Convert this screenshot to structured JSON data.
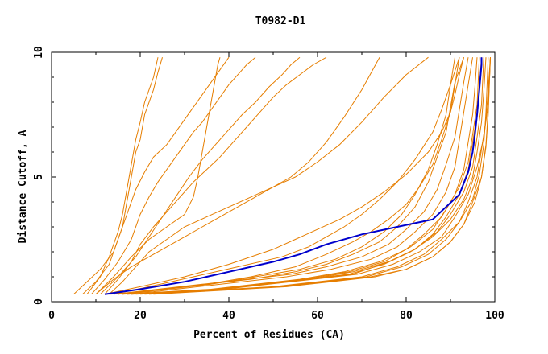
{
  "chart_data": {
    "type": "line",
    "title": "T0982-D1",
    "xlabel": "Percent of Residues (CA)",
    "ylabel": "Distance Cutoff, A",
    "xlim": [
      0,
      100
    ],
    "ylim": [
      0,
      10
    ],
    "x_ticks": [
      "0",
      "20",
      "40",
      "60",
      "80",
      "100"
    ],
    "y_ticks": [
      "0",
      "5",
      "10"
    ],
    "grid": false,
    "legend": "none",
    "colors": {
      "axis": "#000000",
      "orange": "#e67e00",
      "highlight": "#0000cc"
    },
    "highlight_series": {
      "x": [
        12,
        20,
        30,
        40,
        50,
        56,
        62,
        70,
        78,
        86,
        89,
        92,
        94,
        95,
        95.5,
        96,
        96.5,
        97,
        97
      ],
      "y": [
        0.3,
        0.5,
        0.8,
        1.2,
        1.6,
        1.9,
        2.3,
        2.7,
        3.0,
        3.3,
        3.8,
        4.3,
        5.2,
        6.0,
        6.7,
        7.5,
        8.5,
        9.5,
        9.8
      ]
    },
    "series": [
      {
        "x": [
          5,
          8,
          11,
          14,
          16,
          17,
          18,
          19,
          20,
          21,
          23,
          24,
          25
        ],
        "y": [
          0.3,
          0.8,
          1.3,
          2.0,
          3.0,
          4.0,
          5.0,
          6.0,
          6.5,
          7.5,
          8.5,
          9.2,
          9.8
        ]
      },
      {
        "x": [
          7,
          10,
          13,
          15,
          17,
          19,
          21,
          23,
          26,
          28,
          30,
          32,
          34,
          36,
          38,
          40
        ],
        "y": [
          0.3,
          0.8,
          1.5,
          2.5,
          3.5,
          4.5,
          5.2,
          5.8,
          6.3,
          6.8,
          7.3,
          7.8,
          8.3,
          8.8,
          9.3,
          9.8
        ]
      },
      {
        "x": [
          9,
          12,
          15,
          18,
          20,
          22,
          24,
          26,
          28,
          30,
          32,
          34,
          36,
          38,
          40,
          42,
          44,
          46
        ],
        "y": [
          0.3,
          0.9,
          1.6,
          2.5,
          3.5,
          4.2,
          4.8,
          5.3,
          5.8,
          6.3,
          6.8,
          7.2,
          7.7,
          8.2,
          8.7,
          9.1,
          9.5,
          9.8
        ]
      },
      {
        "x": [
          10,
          14,
          18,
          22,
          26,
          30,
          32,
          33,
          34,
          35,
          36,
          37,
          37.5,
          38
        ],
        "y": [
          0.3,
          1.0,
          1.8,
          2.5,
          3.0,
          3.5,
          4.2,
          5.0,
          6.0,
          7.0,
          8.0,
          9.0,
          9.5,
          9.8
        ]
      },
      {
        "x": [
          13,
          16,
          19,
          22,
          26,
          30,
          35,
          40,
          45,
          50,
          55,
          60,
          65,
          70,
          75,
          80,
          85
        ],
        "y": [
          0.3,
          0.8,
          1.4,
          2.0,
          2.5,
          3.0,
          3.4,
          3.8,
          4.2,
          4.6,
          5.0,
          5.6,
          6.3,
          7.2,
          8.2,
          9.1,
          9.8
        ]
      },
      {
        "x": [
          10,
          14,
          18,
          22,
          26,
          30,
          34,
          38,
          42,
          46,
          50,
          54,
          58,
          62,
          66,
          70,
          74
        ],
        "y": [
          0.3,
          0.9,
          1.4,
          1.8,
          2.2,
          2.6,
          3.0,
          3.4,
          3.8,
          4.2,
          4.6,
          5.0,
          5.6,
          6.4,
          7.4,
          8.5,
          9.8
        ]
      },
      {
        "x": [
          12,
          20,
          30,
          40,
          50,
          55,
          60,
          65,
          70,
          75,
          80,
          85,
          88,
          90,
          91,
          92,
          93
        ],
        "y": [
          0.3,
          0.6,
          1.0,
          1.5,
          2.1,
          2.5,
          2.9,
          3.3,
          3.8,
          4.4,
          5.1,
          6.0,
          6.8,
          7.6,
          8.3,
          9.1,
          9.8
        ]
      },
      {
        "x": [
          14,
          22,
          32,
          42,
          52,
          58,
          62,
          66,
          70,
          74,
          78,
          82,
          86,
          88,
          90,
          92
        ],
        "y": [
          0.3,
          0.6,
          1.0,
          1.4,
          1.8,
          2.2,
          2.6,
          3.0,
          3.5,
          4.1,
          4.8,
          5.7,
          6.8,
          7.7,
          8.7,
          9.8
        ]
      },
      {
        "x": [
          15,
          25,
          35,
          45,
          55,
          62,
          68,
          72,
          76,
          80,
          83,
          86,
          88,
          90,
          91,
          92
        ],
        "y": [
          0.3,
          0.5,
          0.7,
          1.0,
          1.4,
          1.9,
          2.4,
          2.8,
          3.3,
          3.9,
          4.6,
          5.5,
          6.5,
          7.6,
          8.7,
          9.8
        ]
      },
      {
        "x": [
          16,
          26,
          36,
          46,
          56,
          64,
          70,
          75,
          79,
          82,
          85,
          87,
          89,
          90,
          91
        ],
        "y": [
          0.3,
          0.5,
          0.7,
          1.0,
          1.3,
          1.7,
          2.2,
          2.8,
          3.5,
          4.3,
          5.3,
          6.3,
          7.5,
          8.7,
          9.8
        ]
      },
      {
        "x": [
          15,
          25,
          35,
          45,
          55,
          62,
          68,
          74,
          78,
          82,
          85,
          87,
          89,
          90,
          91,
          93
        ],
        "y": [
          0.3,
          0.5,
          0.7,
          0.9,
          1.2,
          1.5,
          1.9,
          2.4,
          3.0,
          3.8,
          4.8,
          5.8,
          6.8,
          7.8,
          8.8,
          9.8
        ]
      },
      {
        "x": [
          14,
          24,
          34,
          44,
          54,
          62,
          70,
          76,
          80,
          84,
          87,
          89,
          91,
          92,
          93,
          94
        ],
        "y": [
          0.3,
          0.5,
          0.7,
          0.9,
          1.1,
          1.4,
          1.8,
          2.3,
          2.9,
          3.6,
          4.5,
          5.5,
          6.6,
          7.7,
          8.8,
          9.8
        ]
      },
      {
        "x": [
          13,
          23,
          33,
          43,
          53,
          63,
          72,
          78,
          82,
          86,
          89,
          91,
          92,
          93,
          94,
          95
        ],
        "y": [
          0.3,
          0.4,
          0.6,
          0.8,
          1.0,
          1.3,
          1.7,
          2.2,
          2.8,
          3.5,
          4.4,
          5.4,
          6.5,
          7.6,
          8.7,
          9.8
        ]
      },
      {
        "x": [
          16,
          26,
          36,
          46,
          56,
          66,
          74,
          80,
          84,
          88,
          91,
          93,
          94,
          95,
          95.5,
          96
        ],
        "y": [
          0.3,
          0.4,
          0.5,
          0.7,
          0.9,
          1.2,
          1.6,
          2.1,
          2.7,
          3.4,
          4.3,
          5.3,
          6.4,
          7.5,
          8.6,
          9.8
        ]
      },
      {
        "x": [
          18,
          28,
          38,
          48,
          58,
          68,
          76,
          82,
          86,
          89,
          92,
          94,
          95,
          96,
          96.5,
          97
        ],
        "y": [
          0.3,
          0.4,
          0.5,
          0.7,
          0.9,
          1.2,
          1.6,
          2.1,
          2.7,
          3.4,
          4.3,
          5.3,
          6.4,
          7.5,
          8.6,
          9.8
        ]
      },
      {
        "x": [
          17,
          27,
          37,
          47,
          57,
          67,
          75,
          81,
          86,
          90,
          93,
          95,
          96,
          97,
          97.5,
          98
        ],
        "y": [
          0.3,
          0.4,
          0.5,
          0.7,
          0.9,
          1.1,
          1.5,
          2.0,
          2.6,
          3.3,
          4.1,
          5.0,
          6.0,
          7.2,
          8.4,
          9.8
        ]
      },
      {
        "x": [
          20,
          30,
          40,
          50,
          60,
          70,
          78,
          84,
          88,
          92,
          94,
          96,
          97,
          98,
          98.5,
          99
        ],
        "y": [
          0.3,
          0.4,
          0.5,
          0.6,
          0.8,
          1.0,
          1.4,
          1.9,
          2.5,
          3.2,
          4.0,
          5.0,
          6.1,
          7.3,
          8.5,
          9.8
        ]
      },
      {
        "x": [
          19,
          29,
          39,
          49,
          59,
          69,
          77,
          83,
          88,
          91,
          94,
          96,
          97.5,
          98.5,
          99
        ],
        "y": [
          0.3,
          0.4,
          0.5,
          0.7,
          0.9,
          1.1,
          1.5,
          2.0,
          2.6,
          3.4,
          4.3,
          5.4,
          6.6,
          7.9,
          9.8
        ]
      },
      {
        "x": [
          21,
          31,
          41,
          51,
          61,
          71,
          79,
          85,
          89,
          92,
          95,
          96.5,
          97.5,
          98,
          98.5
        ],
        "y": [
          0.3,
          0.4,
          0.5,
          0.6,
          0.8,
          1.0,
          1.4,
          1.9,
          2.5,
          3.2,
          4.1,
          5.1,
          6.3,
          7.6,
          9.8
        ]
      },
      {
        "x": [
          18,
          28,
          38,
          48,
          58,
          68,
          76,
          82,
          87,
          90,
          93,
          95,
          96,
          97,
          97.5
        ],
        "y": [
          0.3,
          0.4,
          0.5,
          0.7,
          0.9,
          1.1,
          1.6,
          2.1,
          2.8,
          3.5,
          4.4,
          5.4,
          6.6,
          7.9,
          9.8
        ]
      },
      {
        "x": [
          22,
          32,
          42,
          52,
          62,
          72,
          80,
          86,
          90,
          93,
          95,
          97,
          98,
          98.5,
          99
        ],
        "y": [
          0.3,
          0.4,
          0.5,
          0.6,
          0.8,
          1.0,
          1.3,
          1.8,
          2.4,
          3.1,
          4.0,
          5.0,
          6.2,
          7.5,
          9.8
        ]
      },
      {
        "x": [
          17,
          27,
          37,
          47,
          57,
          67,
          75,
          81,
          86,
          89,
          92,
          94,
          95,
          96,
          96.5
        ],
        "y": [
          0.3,
          0.4,
          0.5,
          0.7,
          0.9,
          1.2,
          1.6,
          2.2,
          2.9,
          3.7,
          4.6,
          5.6,
          6.7,
          7.9,
          9.8
        ]
      },
      {
        "x": [
          23,
          33,
          43,
          53,
          63,
          73,
          80,
          86,
          90,
          93,
          95.5,
          97,
          98,
          98.5,
          99
        ],
        "y": [
          0.3,
          0.4,
          0.5,
          0.6,
          0.8,
          1.0,
          1.3,
          1.8,
          2.4,
          3.1,
          4.0,
          5.0,
          6.3,
          7.7,
          9.8
        ]
      },
      {
        "x": [
          11,
          15,
          19,
          22,
          25,
          28,
          31,
          34,
          37,
          40,
          43,
          46,
          49,
          52,
          54,
          56
        ],
        "y": [
          0.3,
          1.0,
          1.8,
          2.6,
          3.4,
          4.2,
          5.0,
          5.7,
          6.3,
          6.9,
          7.5,
          8.0,
          8.6,
          9.1,
          9.5,
          9.8
        ]
      },
      {
        "x": [
          8,
          11,
          13,
          15,
          16,
          17,
          18,
          19,
          20,
          21,
          23,
          24
        ],
        "y": [
          0.3,
          1.0,
          1.8,
          2.8,
          3.5,
          4.5,
          5.5,
          6.5,
          7.2,
          8.0,
          9.0,
          9.8
        ]
      },
      {
        "x": [
          12,
          15,
          18,
          20,
          23,
          26,
          29,
          32,
          35,
          38,
          41,
          44,
          47,
          50,
          53,
          56,
          59,
          62
        ],
        "y": [
          0.3,
          0.9,
          1.6,
          2.3,
          3.0,
          3.6,
          4.2,
          4.8,
          5.3,
          5.8,
          6.4,
          7.0,
          7.6,
          8.2,
          8.7,
          9.1,
          9.5,
          9.8
        ]
      }
    ]
  }
}
